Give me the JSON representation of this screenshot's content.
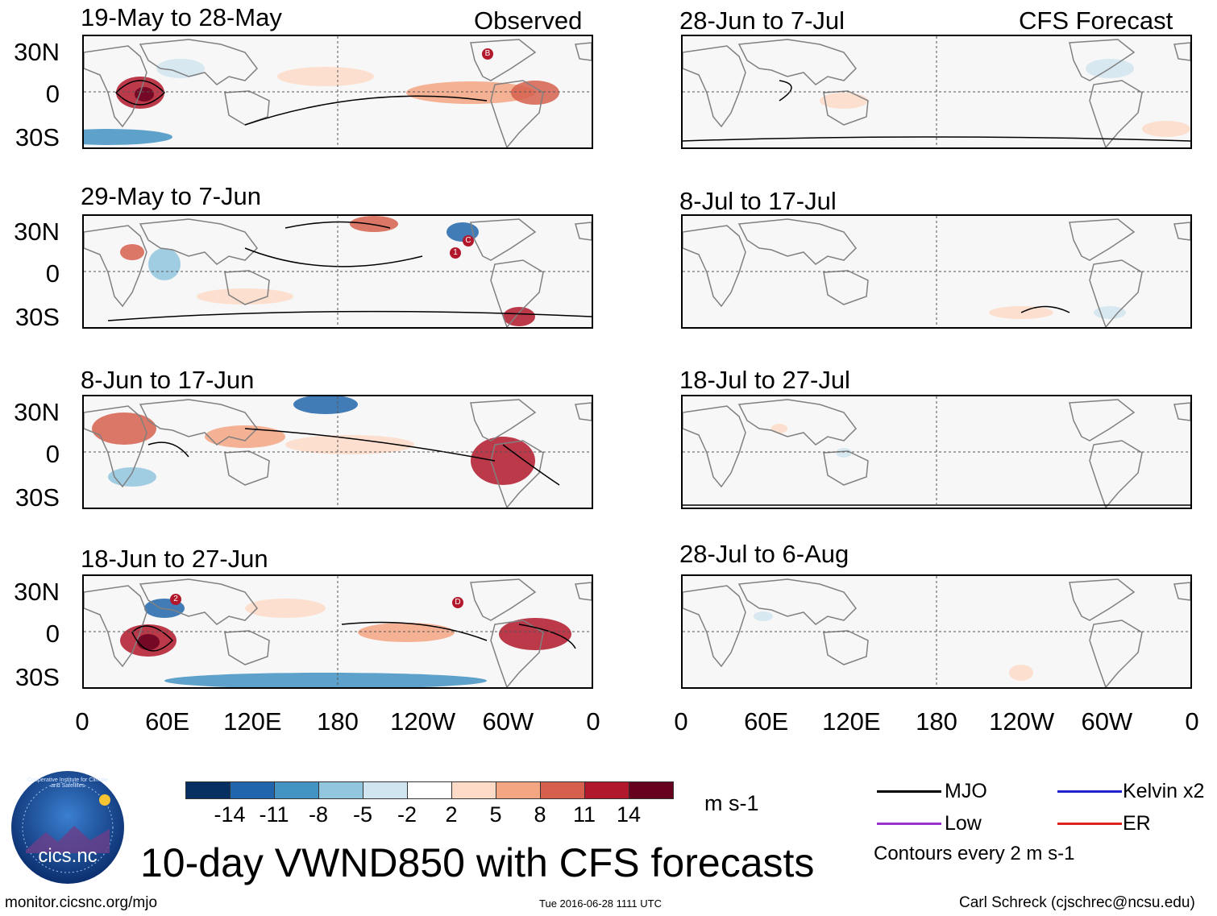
{
  "colors": {
    "bins": [
      "#053061",
      "#2166ac",
      "#4393c3",
      "#92c5de",
      "#d1e5f0",
      "#ffffff",
      "#fddbc7",
      "#f4a582",
      "#d6604d",
      "#b2182b",
      "#67001f"
    ],
    "mjo": "#000000",
    "kelvin": "#2222cc",
    "low": "#9933cc",
    "er": "#dd2222",
    "land": "#808080",
    "background": "#f7f7f7"
  },
  "observed_label": "Observed",
  "forecast_label": "CFS Forecast",
  "panels": {
    "obs": [
      {
        "title": "19-May to 28-May"
      },
      {
        "title": "29-May to 7-Jun"
      },
      {
        "title": "8-Jun to 17-Jun"
      },
      {
        "title": "18-Jun to 27-Jun"
      }
    ],
    "fc": [
      {
        "title": "28-Jun to 7-Jul"
      },
      {
        "title": "8-Jul to 17-Jul"
      },
      {
        "title": "18-Jul to 27-Jul"
      },
      {
        "title": "28-Jul to 6-Aug"
      }
    ]
  },
  "y_axis_labels": [
    "30N",
    "0",
    "30S"
  ],
  "x_axis_labels": [
    "0",
    "60E",
    "120E",
    "180",
    "120W",
    "60W",
    "0"
  ],
  "colorbar": {
    "labels": [
      "-14",
      "-11",
      "-8",
      "-5",
      "-2",
      "2",
      "5",
      "8",
      "11",
      "14"
    ],
    "units": "m s-1"
  },
  "legend": {
    "mjo": "MJO",
    "kelvin": "Kelvin x2",
    "low": "Low",
    "er": "ER",
    "contour_note": "Contours every 2 m s-1"
  },
  "markers": {
    "b": "B",
    "c": "C",
    "one": "1",
    "two": "2",
    "d": "D"
  },
  "main_title": "10-day VWND850 with CFS forecasts",
  "logo_text": "cics.nc",
  "logo_ring_text": "Cooperative Institute for Climate and Satellites",
  "footer": {
    "url": "monitor.cicsnc.org/mjo",
    "timestamp": "Tue 2016-06-28 1111 UTC",
    "author": "Carl Schreck (cjschrec@ncsu.edu)"
  }
}
